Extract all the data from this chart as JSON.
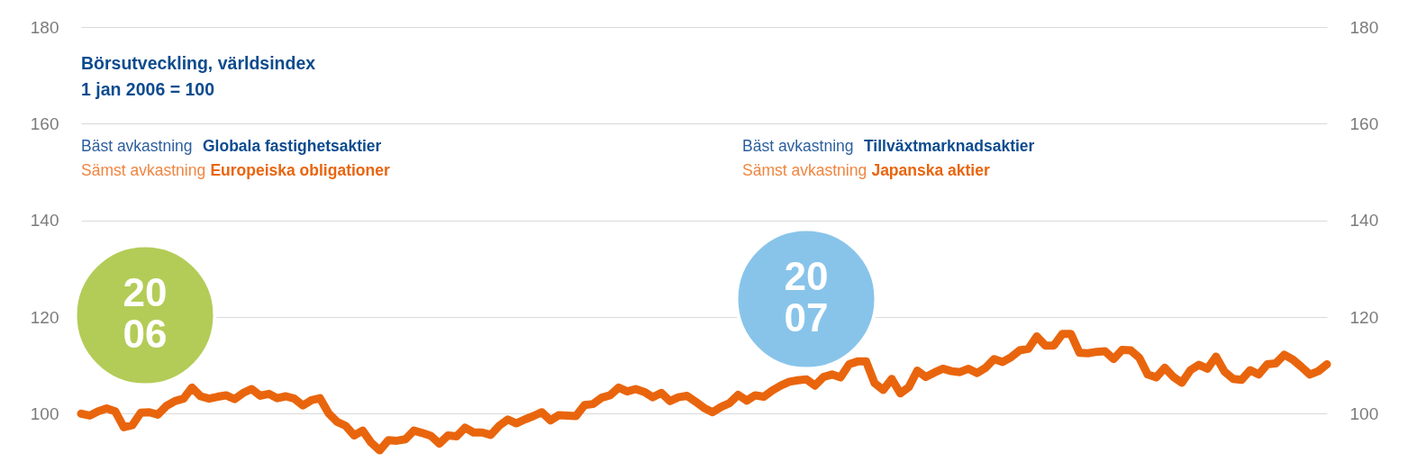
{
  "chart_data": {
    "type": "line",
    "title": "Börsutveckling, världsindex",
    "subtitle": "1 jan 2006 = 100",
    "categories": [
      null,
      null,
      null,
      null,
      null,
      null,
      null,
      null,
      null,
      null,
      null,
      null,
      null,
      null,
      null,
      null,
      null,
      null,
      null,
      null,
      null,
      null,
      null,
      null,
      null,
      null,
      null,
      null,
      null,
      null,
      null,
      null,
      null,
      null,
      null,
      null,
      null,
      null,
      null,
      null,
      null,
      null,
      null,
      null,
      null,
      null,
      null,
      null,
      null,
      null,
      null,
      null,
      null,
      null,
      null,
      null,
      null,
      null,
      null,
      null,
      null,
      null,
      null,
      null,
      null,
      null,
      null,
      null,
      null,
      null,
      null,
      null,
      null,
      null,
      null,
      null,
      null,
      null,
      null,
      null,
      null,
      null,
      null,
      null,
      null,
      null,
      null,
      null,
      null,
      null,
      null,
      null,
      null,
      null,
      null,
      null,
      null,
      null,
      null,
      null,
      null,
      null,
      null,
      null,
      null,
      null,
      null,
      null,
      null,
      null,
      null,
      null,
      null,
      null,
      null,
      null,
      null,
      null,
      null,
      null,
      null,
      null,
      null,
      null,
      null,
      null,
      null,
      null,
      null,
      null,
      null,
      null,
      null,
      null,
      null,
      null,
      null,
      null,
      null,
      null,
      null,
      null,
      null,
      null,
      null,
      null,
      null
    ],
    "series": [
      {
        "color": "#e9650d",
        "values": [
          100.0,
          99.6,
          100.5,
          101.1,
          100.5,
          97.2,
          97.6,
          100.2,
          100.3,
          99.8,
          101.6,
          102.6,
          103.1,
          105.4,
          103.6,
          103.1,
          103.5,
          103.8,
          103.0,
          104.3,
          105.1,
          103.7,
          104.1,
          103.2,
          103.6,
          103.1,
          101.7,
          102.8,
          103.2,
          100.1,
          98.3,
          97.5,
          95.5,
          96.5,
          94.0,
          92.4,
          94.5,
          94.4,
          94.7,
          96.5,
          96.0,
          95.4,
          93.8,
          95.5,
          95.3,
          97.1,
          96.1,
          96.1,
          95.6,
          97.5,
          98.8,
          98.0,
          98.8,
          99.5,
          100.3,
          98.6,
          99.7,
          99.6,
          99.5,
          101.8,
          102.0,
          103.3,
          103.8,
          105.4,
          104.6,
          105.1,
          104.5,
          103.4,
          104.3,
          102.6,
          103.4,
          103.7,
          102.5,
          101.2,
          100.3,
          101.4,
          102.2,
          103.9,
          102.7,
          103.8,
          103.5,
          104.8,
          105.8,
          106.6,
          106.9,
          107.1,
          105.8,
          107.6,
          108.1,
          107.5,
          110.2,
          110.8,
          110.8,
          106.3,
          104.9,
          107.2,
          104.2,
          105.5,
          108.9,
          107.6,
          108.5,
          109.3,
          108.8,
          108.6,
          109.3,
          108.4,
          109.5,
          111.3,
          110.7,
          111.7,
          113.1,
          113.4,
          116.0,
          114.1,
          114.1,
          116.5,
          116.5,
          112.6,
          112.5,
          112.8,
          112.9,
          111.3,
          113.2,
          113.1,
          111.6,
          108.1,
          107.5,
          109.5,
          107.6,
          106.4,
          109.0,
          110.1,
          109.3,
          111.8,
          108.7,
          107.2,
          107.0,
          109.0,
          108.1,
          110.2,
          110.4,
          112.2,
          111.2,
          109.7,
          108.1,
          108.8,
          110.2
        ]
      }
    ],
    "ylim": [
      90,
      180
    ],
    "yticks": [
      100,
      120,
      140,
      160,
      180
    ],
    "y2lim": [
      90,
      180
    ],
    "y2ticks": [
      100,
      120,
      140,
      160,
      180
    ],
    "grid": "y",
    "tick_labels": "y",
    "line_style": "solid",
    "annotations": [
      "Bäst avkastning",
      "Globala fastighetsaktier",
      "Sämst avkastning",
      "Europeiska obligationer",
      "Bäst avkastning",
      "Tillväxtmarknadsaktier",
      "Sämst avkastning",
      "Japanska aktier",
      "20\n06",
      "20\n07"
    ]
  }
}
